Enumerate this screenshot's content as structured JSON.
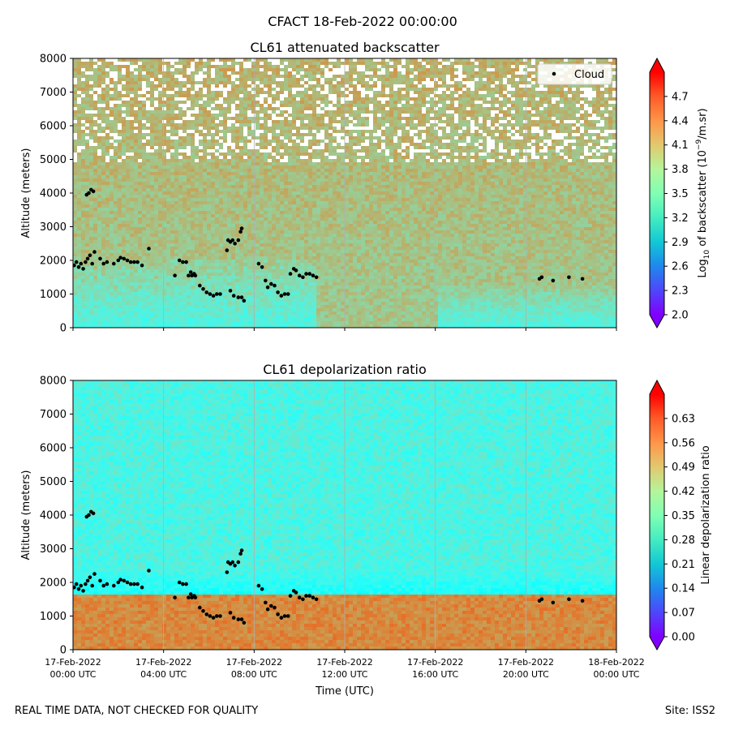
{
  "figure": {
    "title": "CFACT 18-Feb-2022 00:00:00",
    "footer_left": "REAL TIME DATA, NOT CHECKED FOR QUALITY",
    "footer_right": "Site: ISS2"
  },
  "chart_data": [
    {
      "type": "heatmap",
      "title": "CL61 attenuated backscatter",
      "ylabel": "Altitude (meters)",
      "xlabel": "",
      "xlim_hours": [
        0,
        24
      ],
      "ylim": [
        0,
        8000
      ],
      "yticks": [
        0,
        1000,
        2000,
        3000,
        4000,
        5000,
        6000,
        7000,
        8000
      ],
      "xticks_hours": [
        0,
        4,
        8,
        12,
        16,
        20,
        24
      ],
      "grid": "vertical",
      "colormap": "rainbow",
      "colorbar": {
        "label": "Log10 of backscatter (10^-9/m.sr)",
        "label_base": "Log",
        "label_sub": "10",
        "label_mid": " of backscatter (10",
        "label_sup": "−9",
        "label_end": "/m.sr)",
        "range": [
          2.0,
          5.0
        ],
        "ticks": [
          "2.0",
          "2.3",
          "2.6",
          "2.9",
          "3.2",
          "3.5",
          "3.8",
          "4.1",
          "4.4",
          "4.7"
        ],
        "extend": "both"
      },
      "legend": {
        "entries": [
          "Cloud"
        ],
        "location": "top-right"
      },
      "cloud_base_points": [
        [
          0.05,
          1850
        ],
        [
          0.15,
          1950
        ],
        [
          0.25,
          1800
        ],
        [
          0.35,
          1900
        ],
        [
          0.45,
          1750
        ],
        [
          0.55,
          1950
        ],
        [
          0.65,
          2050
        ],
        [
          0.75,
          2150
        ],
        [
          0.85,
          1900
        ],
        [
          0.95,
          2250
        ],
        [
          0.6,
          3950
        ],
        [
          0.7,
          4000
        ],
        [
          0.8,
          4100
        ],
        [
          0.9,
          4050
        ],
        [
          1.2,
          2050
        ],
        [
          1.35,
          1900
        ],
        [
          1.5,
          1950
        ],
        [
          1.8,
          1900
        ],
        [
          2.0,
          2000
        ],
        [
          2.1,
          2080
        ],
        [
          2.25,
          2050
        ],
        [
          2.4,
          2000
        ],
        [
          2.55,
          1950
        ],
        [
          2.7,
          1950
        ],
        [
          2.85,
          1950
        ],
        [
          3.05,
          1850
        ],
        [
          3.35,
          2350
        ],
        [
          4.5,
          1550
        ],
        [
          4.7,
          2000
        ],
        [
          4.85,
          1950
        ],
        [
          5.0,
          1950
        ],
        [
          5.1,
          1550
        ],
        [
          5.25,
          1550
        ],
        [
          5.4,
          1550
        ],
        [
          5.6,
          1250
        ],
        [
          5.75,
          1150
        ],
        [
          5.9,
          1050
        ],
        [
          6.05,
          1000
        ],
        [
          6.2,
          950
        ],
        [
          6.35,
          1000
        ],
        [
          6.5,
          1000
        ],
        [
          6.8,
          2300
        ],
        [
          6.85,
          2600
        ],
        [
          6.95,
          2550
        ],
        [
          7.05,
          2600
        ],
        [
          7.15,
          2500
        ],
        [
          7.3,
          2600
        ],
        [
          7.4,
          2850
        ],
        [
          7.45,
          2950
        ],
        [
          6.95,
          1100
        ],
        [
          7.1,
          950
        ],
        [
          7.3,
          900
        ],
        [
          7.45,
          900
        ],
        [
          7.55,
          800
        ],
        [
          8.2,
          1900
        ],
        [
          8.35,
          1800
        ],
        [
          8.5,
          1400
        ],
        [
          8.6,
          1200
        ],
        [
          8.75,
          1300
        ],
        [
          8.9,
          1250
        ],
        [
          9.05,
          1050
        ],
        [
          9.2,
          950
        ],
        [
          9.35,
          1000
        ],
        [
          9.5,
          1000
        ],
        [
          9.6,
          1600
        ],
        [
          9.75,
          1750
        ],
        [
          9.85,
          1700
        ],
        [
          10.0,
          1550
        ],
        [
          10.15,
          1500
        ],
        [
          10.3,
          1600
        ],
        [
          10.45,
          1600
        ],
        [
          10.6,
          1550
        ],
        [
          10.75,
          1500
        ],
        [
          20.6,
          1450
        ],
        [
          20.7,
          1500
        ],
        [
          21.2,
          1400
        ],
        [
          21.9,
          1500
        ],
        [
          22.5,
          1450
        ],
        [
          5.2,
          1650
        ],
        [
          5.35,
          1600
        ]
      ]
    },
    {
      "type": "heatmap",
      "title": "CL61 depolarization ratio",
      "ylabel": "Altitude (meters)",
      "xlabel": "Time (UTC)",
      "xlim_hours": [
        0,
        24
      ],
      "ylim": [
        0,
        8000
      ],
      "yticks": [
        0,
        1000,
        2000,
        3000,
        4000,
        5000,
        6000,
        7000,
        8000
      ],
      "xticks": [
        [
          "17-Feb-2022",
          "00:00 UTC"
        ],
        [
          "17-Feb-2022",
          "04:00 UTC"
        ],
        [
          "17-Feb-2022",
          "08:00 UTC"
        ],
        [
          "17-Feb-2022",
          "12:00 UTC"
        ],
        [
          "17-Feb-2022",
          "16:00 UTC"
        ],
        [
          "17-Feb-2022",
          "20:00 UTC"
        ],
        [
          "18-Feb-2022",
          "00:00 UTC"
        ]
      ],
      "xticks_hours": [
        0,
        4,
        8,
        12,
        16,
        20,
        24
      ],
      "grid": "vertical",
      "colormap": "rainbow",
      "colorbar": {
        "label": "Linear depolarization ratio",
        "range": [
          0.0,
          0.7
        ],
        "ticks": [
          "0.00",
          "0.07",
          "0.14",
          "0.21",
          "0.28",
          "0.35",
          "0.42",
          "0.49",
          "0.56",
          "0.63"
        ],
        "extend": "both"
      }
    }
  ]
}
